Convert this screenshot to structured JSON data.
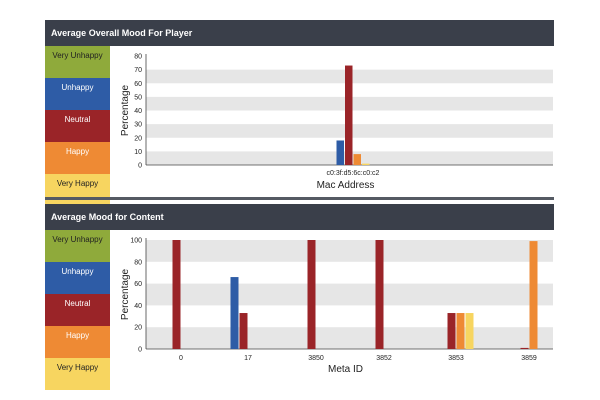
{
  "panels": [
    {
      "header": "Average Overall Mood For Player"
    },
    {
      "header": "Average Mood for Content"
    }
  ],
  "legend": [
    {
      "label": "Very Unhappy",
      "color": "#8faa3b",
      "dark": true
    },
    {
      "label": "Unhappy",
      "color": "#2e5ca6",
      "dark": false
    },
    {
      "label": "Neutral",
      "color": "#9a2428",
      "dark": false
    },
    {
      "label": "Happy",
      "color": "#ee8a34",
      "dark": false
    },
    {
      "label": "Very Happy",
      "color": "#f7d560",
      "dark": true
    }
  ],
  "chart_data": [
    {
      "type": "bar",
      "title": "Average Overall Mood For Player",
      "xlabel": "Mac Address",
      "ylabel": "Percentage",
      "ylim": [
        0,
        80
      ],
      "yticks": [
        0,
        10,
        20,
        30,
        40,
        50,
        60,
        70,
        80
      ],
      "categories": [
        "c0:3f:d5:6c:c0:c2"
      ],
      "series": [
        {
          "name": "Very Unhappy",
          "values": [
            0
          ]
        },
        {
          "name": "Unhappy",
          "values": [
            18
          ]
        },
        {
          "name": "Neutral",
          "values": [
            73
          ]
        },
        {
          "name": "Happy",
          "values": [
            8
          ]
        },
        {
          "name": "Very Happy",
          "values": [
            1
          ]
        }
      ],
      "grid": true
    },
    {
      "type": "bar",
      "title": "Average Mood for Content",
      "xlabel": "Meta ID",
      "ylabel": "Percentage",
      "ylim": [
        0,
        100
      ],
      "yticks": [
        0,
        20,
        40,
        60,
        80,
        100
      ],
      "categories": [
        "0",
        "17",
        "3850",
        "3852",
        "3853",
        "3859"
      ],
      "series": [
        {
          "name": "Very Unhappy",
          "values": [
            0,
            0,
            0,
            0,
            0,
            0
          ]
        },
        {
          "name": "Unhappy",
          "values": [
            0,
            66,
            0,
            0,
            0,
            0
          ]
        },
        {
          "name": "Neutral",
          "values": [
            100,
            33,
            100,
            100,
            33,
            1
          ]
        },
        {
          "name": "Happy",
          "values": [
            0,
            0,
            0,
            0,
            33,
            99
          ]
        },
        {
          "name": "Very Happy",
          "values": [
            0,
            0,
            0,
            0,
            33,
            0
          ]
        }
      ],
      "grid": true
    }
  ]
}
